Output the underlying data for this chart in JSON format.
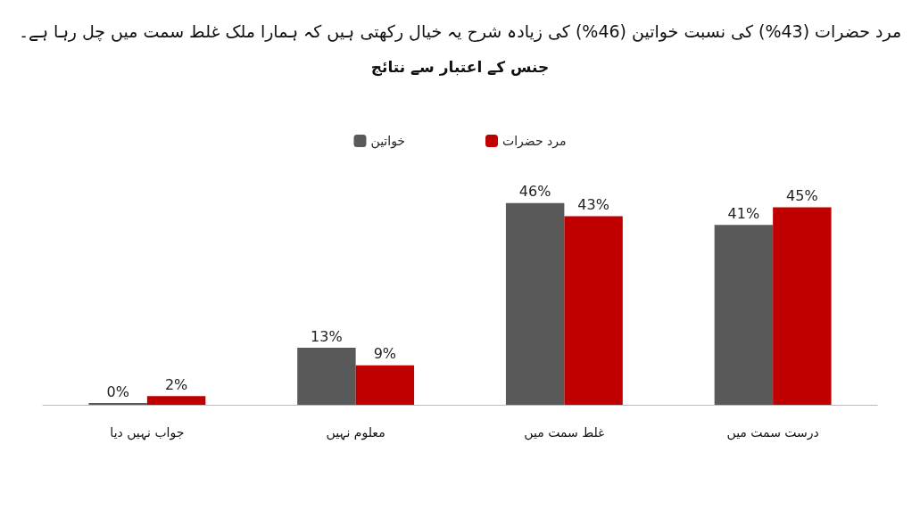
{
  "chart_data": {
    "type": "bar",
    "title": "مرد حضرات (43%) کی نسبت خواتین (46%) کی زیادہ شرح یہ خیال رکھتی ہیں کہ ہمارا ملک غلط سمت میں چل رہا ہے۔",
    "subtitle": "جنس کے اعتبار سے نتائج",
    "categories": [
      "جواب نہیں دیا",
      "معلوم نہیں",
      "غلط سمت میں",
      "درست سمت میں"
    ],
    "series": [
      {
        "name": "خواتین",
        "color": "#595959",
        "values": [
          0,
          13,
          46,
          41
        ],
        "value_labels": [
          "0%",
          "13%",
          "46%",
          "41%"
        ]
      },
      {
        "name": "مرد حضرات",
        "color": "#c00000",
        "values": [
          2,
          9,
          43,
          45
        ],
        "value_labels": [
          "2%",
          "9%",
          "43%",
          "45%"
        ]
      }
    ],
    "legend": "top"
  }
}
